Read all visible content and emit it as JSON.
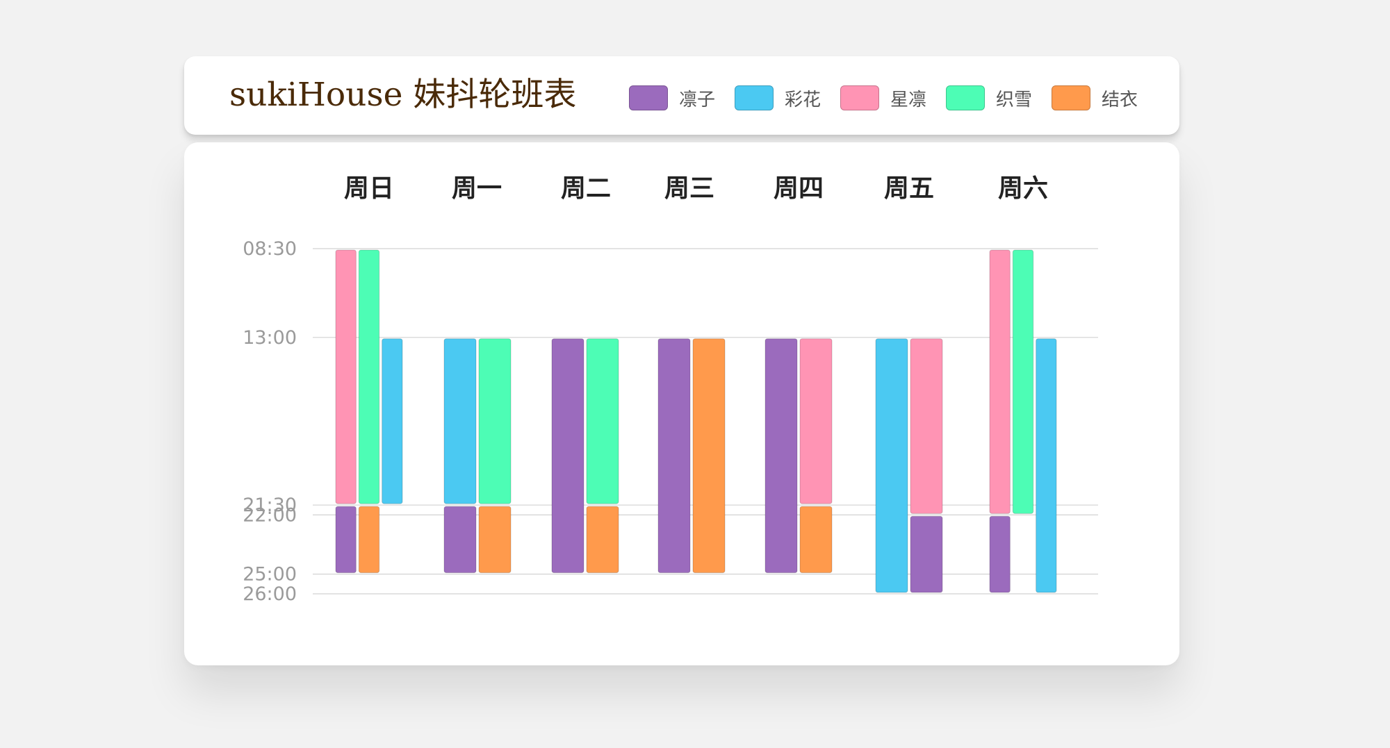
{
  "header": {
    "title": "sukiHouse 妹抖轮班表",
    "legend": [
      {
        "name": "凛子",
        "color": "#9b6bbd"
      },
      {
        "name": "彩花",
        "color": "#4bc9f2"
      },
      {
        "name": "星凛",
        "color": "#ff94b4"
      },
      {
        "name": "织雪",
        "color": "#4dfdb5"
      },
      {
        "name": "结衣",
        "color": "#ff9a4c"
      }
    ]
  },
  "chart_data": {
    "type": "bar",
    "title": "sukiHouse 妹抖轮班表",
    "categories": [
      "周日",
      "周一",
      "周二",
      "周三",
      "周四",
      "周五",
      "周六"
    ],
    "time_ticks": [
      "08:30",
      "13:00",
      "21:30",
      "22:00",
      "25:00",
      "26:00"
    ],
    "tick_hours": [
      8.5,
      13,
      21.5,
      22,
      25,
      26
    ],
    "ylim": [
      8.5,
      26
    ],
    "grid": true,
    "legend_position": "top-right",
    "series": [
      {
        "name": "凛子",
        "color": "#9b6bbd"
      },
      {
        "name": "彩花",
        "color": "#4bc9f2"
      },
      {
        "name": "星凛",
        "color": "#ff94b4"
      },
      {
        "name": "织雪",
        "color": "#4dfdb5"
      },
      {
        "name": "结衣",
        "color": "#ff9a4c"
      }
    ],
    "shifts": [
      {
        "day": "周日",
        "person": "星凛",
        "start": 8.5,
        "end": 21.5
      },
      {
        "day": "周日",
        "person": "织雪",
        "start": 8.5,
        "end": 21.5
      },
      {
        "day": "周日",
        "person": "彩花",
        "start": 13,
        "end": 21.5
      },
      {
        "day": "周日",
        "person": "凛子",
        "start": 21.5,
        "end": 25
      },
      {
        "day": "周日",
        "person": "结衣",
        "start": 21.5,
        "end": 25
      },
      {
        "day": "周一",
        "person": "彩花",
        "start": 13,
        "end": 21.5
      },
      {
        "day": "周一",
        "person": "织雪",
        "start": 13,
        "end": 21.5
      },
      {
        "day": "周一",
        "person": "凛子",
        "start": 21.5,
        "end": 25
      },
      {
        "day": "周一",
        "person": "结衣",
        "start": 21.5,
        "end": 25
      },
      {
        "day": "周二",
        "person": "凛子",
        "start": 13,
        "end": 25
      },
      {
        "day": "周二",
        "person": "织雪",
        "start": 13,
        "end": 21.5
      },
      {
        "day": "周二",
        "person": "结衣",
        "start": 21.5,
        "end": 25
      },
      {
        "day": "周三",
        "person": "凛子",
        "start": 13,
        "end": 25
      },
      {
        "day": "周三",
        "person": "结衣",
        "start": 13,
        "end": 25
      },
      {
        "day": "周四",
        "person": "凛子",
        "start": 13,
        "end": 25
      },
      {
        "day": "周四",
        "person": "星凛",
        "start": 13,
        "end": 21.5
      },
      {
        "day": "周四",
        "person": "结衣",
        "start": 21.5,
        "end": 25
      },
      {
        "day": "周五",
        "person": "彩花",
        "start": 13,
        "end": 26
      },
      {
        "day": "周五",
        "person": "星凛",
        "start": 13,
        "end": 22
      },
      {
        "day": "周五",
        "person": "凛子",
        "start": 22,
        "end": 26
      },
      {
        "day": "周六",
        "person": "星凛",
        "start": 8.5,
        "end": 22
      },
      {
        "day": "周六",
        "person": "织雪",
        "start": 8.5,
        "end": 22
      },
      {
        "day": "周六",
        "person": "彩花",
        "start": 13,
        "end": 26
      },
      {
        "day": "周六",
        "person": "凛子",
        "start": 22,
        "end": 26
      }
    ]
  }
}
